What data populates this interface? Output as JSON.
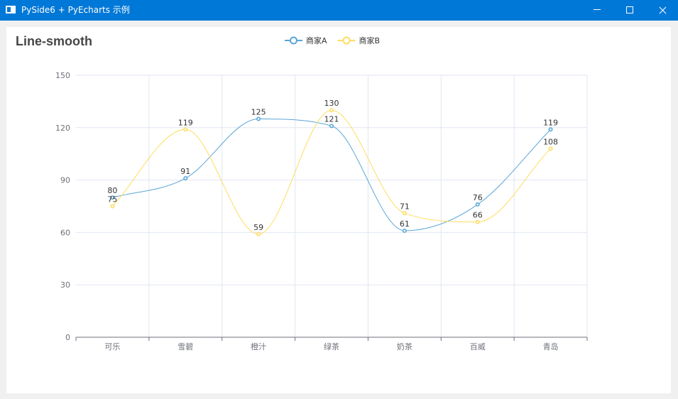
{
  "window": {
    "title": "PySide6 + PyEcharts 示例",
    "controls": [
      "minimize",
      "maximize",
      "close"
    ]
  },
  "chart_data": {
    "type": "line",
    "smooth": true,
    "title": "Line-smooth",
    "categories": [
      "可乐",
      "雪碧",
      "橙汁",
      "绿茶",
      "奶茶",
      "百威",
      "青岛"
    ],
    "series": [
      {
        "name": "商家A",
        "values": [
          80,
          91,
          125,
          121,
          61,
          76,
          119
        ],
        "color": "#5aa6d8"
      },
      {
        "name": "商家B",
        "values": [
          75,
          119,
          59,
          130,
          71,
          66,
          108
        ],
        "color": "#fddd60"
      }
    ],
    "ylim": [
      0,
      150
    ],
    "yticks": [
      0,
      30,
      60,
      90,
      120,
      150
    ],
    "grid": true,
    "legend_position": "top-center",
    "data_labels": true
  }
}
